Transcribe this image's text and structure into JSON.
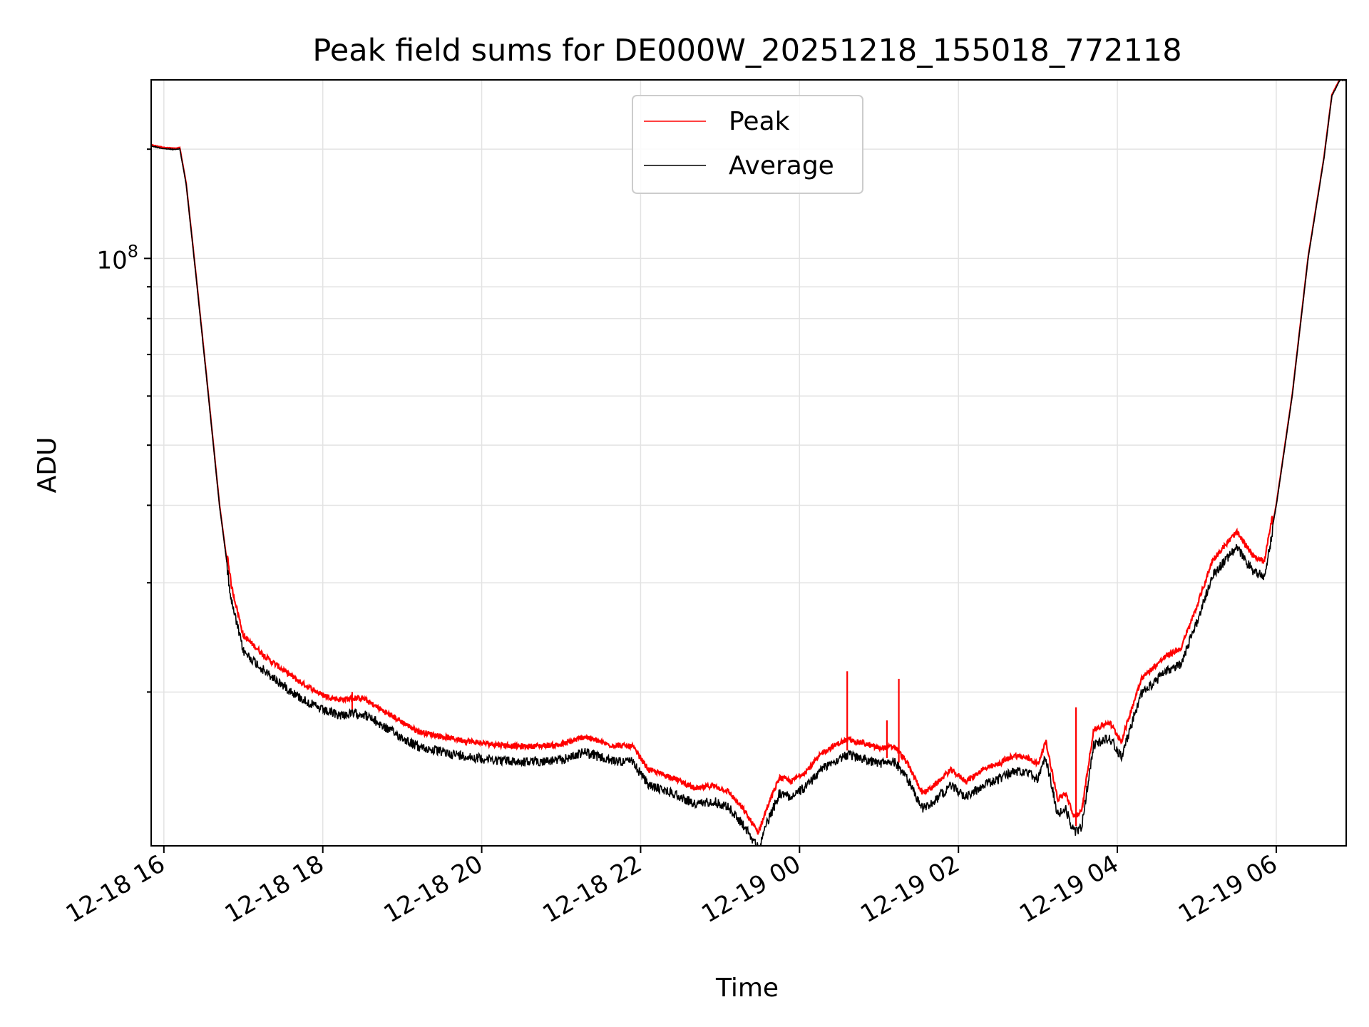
{
  "chart_data": {
    "type": "line",
    "title": "Peak field sums for DE000W_20251218_155018_772118",
    "xlabel": "Time",
    "ylabel": "ADU",
    "y_scale": "log",
    "ylim": [
      11300000,
      194000000
    ],
    "xlim_hours": [
      15.84,
      30.88
    ],
    "x_ticks": [
      {
        "label": "12-18 16",
        "hours": 16
      },
      {
        "label": "12-18 18",
        "hours": 18
      },
      {
        "label": "12-18 20",
        "hours": 20
      },
      {
        "label": "12-18 22",
        "hours": 22
      },
      {
        "label": "12-19 00",
        "hours": 24
      },
      {
        "label": "12-19 02",
        "hours": 26
      },
      {
        "label": "12-19 04",
        "hours": 28
      },
      {
        "label": "12-19 06",
        "hours": 30
      }
    ],
    "y_major_tick": {
      "value": 100000000,
      "base": "10",
      "exponent": "8"
    },
    "grid": true,
    "legend": {
      "position": "top-center",
      "entries": [
        {
          "name": "Peak",
          "color": "#ff0000"
        },
        {
          "name": "Average",
          "color": "#000000"
        }
      ]
    },
    "series": [
      {
        "name": "Average",
        "color": "#000000",
        "points": [
          [
            15.84,
            152000000
          ],
          [
            16.0,
            150500000
          ],
          [
            16.15,
            150000000
          ],
          [
            16.2,
            150500000
          ],
          [
            16.28,
            132000000
          ],
          [
            16.4,
            95000000
          ],
          [
            16.55,
            62000000
          ],
          [
            16.7,
            40000000
          ],
          [
            16.85,
            28500000
          ],
          [
            17.0,
            23700000
          ],
          [
            17.3,
            21800000
          ],
          [
            17.7,
            20000000
          ],
          [
            18.0,
            19000000
          ],
          [
            18.2,
            18700000
          ],
          [
            18.5,
            18800000
          ],
          [
            18.8,
            17800000
          ],
          [
            19.2,
            16600000
          ],
          [
            19.6,
            16200000
          ],
          [
            20.0,
            15900000
          ],
          [
            20.5,
            15700000
          ],
          [
            21.0,
            15800000
          ],
          [
            21.3,
            16300000
          ],
          [
            21.6,
            15800000
          ],
          [
            21.9,
            15700000
          ],
          [
            22.1,
            14400000
          ],
          [
            22.4,
            14000000
          ],
          [
            22.7,
            13400000
          ],
          [
            22.9,
            13600000
          ],
          [
            23.1,
            13300000
          ],
          [
            23.3,
            12400000
          ],
          [
            23.48,
            11400000
          ],
          [
            23.6,
            12600000
          ],
          [
            23.75,
            14000000
          ],
          [
            23.9,
            13800000
          ],
          [
            24.1,
            14400000
          ],
          [
            24.3,
            15400000
          ],
          [
            24.5,
            15900000
          ],
          [
            24.6,
            16100000
          ],
          [
            24.8,
            15900000
          ],
          [
            25.0,
            15600000
          ],
          [
            25.2,
            15700000
          ],
          [
            25.35,
            14800000
          ],
          [
            25.55,
            13200000
          ],
          [
            25.7,
            13600000
          ],
          [
            25.9,
            14400000
          ],
          [
            26.1,
            13800000
          ],
          [
            26.3,
            14400000
          ],
          [
            26.5,
            14700000
          ],
          [
            26.7,
            15200000
          ],
          [
            26.9,
            15000000
          ],
          [
            27.0,
            14700000
          ],
          [
            27.1,
            16000000
          ],
          [
            27.25,
            12900000
          ],
          [
            27.35,
            13200000
          ],
          [
            27.45,
            12100000
          ],
          [
            27.55,
            12300000
          ],
          [
            27.7,
            16700000
          ],
          [
            27.9,
            17200000
          ],
          [
            28.05,
            16000000
          ],
          [
            28.3,
            20200000
          ],
          [
            28.6,
            21900000
          ],
          [
            28.8,
            22600000
          ],
          [
            29.0,
            26400000
          ],
          [
            29.2,
            31400000
          ],
          [
            29.5,
            34800000
          ],
          [
            29.7,
            32000000
          ],
          [
            29.85,
            31200000
          ],
          [
            30.0,
            40000000
          ],
          [
            30.2,
            60000000
          ],
          [
            30.4,
            100000000
          ],
          [
            30.6,
            145000000
          ],
          [
            30.7,
            183000000
          ],
          [
            30.8,
            194000000
          ],
          [
            30.88,
            194000000
          ]
        ]
      },
      {
        "name": "Peak",
        "color": "#ff0000",
        "spikes": [
          [
            18.37,
            20000000
          ],
          [
            24.6,
            21600000
          ],
          [
            25.25,
            21000000
          ],
          [
            25.1,
            18000000
          ],
          [
            27.48,
            18900000
          ]
        ]
      }
    ]
  }
}
